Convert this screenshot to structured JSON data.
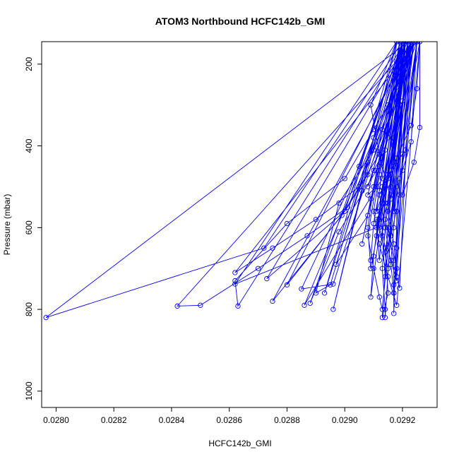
{
  "chart_data": {
    "type": "line",
    "title": "ATOM3 Northbound HCFC142b_GMI",
    "xlabel": "HCFC142b_GMI",
    "ylabel": "Pressure (mbar)",
    "xlim": [
      0.02795,
      0.02932
    ],
    "ylim": [
      1040,
      145
    ],
    "y_reversed": true,
    "x_ticks": [
      0.028,
      0.0282,
      0.0284,
      0.0286,
      0.0288,
      0.029,
      0.0292
    ],
    "x_tick_labels": [
      "0.0280",
      "0.0282",
      "0.0284",
      "0.0286",
      "0.0288",
      "0.0290",
      "0.0292"
    ],
    "y_ticks": [
      200,
      400,
      600,
      800,
      1000
    ],
    "y_tick_labels": [
      "200",
      "400",
      "600",
      "800",
      "1000"
    ],
    "grid": false,
    "series": [
      {
        "color": "#0000ff",
        "marker": "open-circle",
        "points": [
          [
            0.029205,
            145
          ],
          [
            0.02919,
            250
          ],
          [
            0.02915,
            380
          ],
          [
            0.02912,
            470
          ],
          [
            0.0291,
            560
          ],
          [
            0.02912,
            640
          ],
          [
            0.02915,
            720
          ],
          [
            0.02918,
            790
          ],
          [
            0.02926,
            145
          ],
          [
            0.02925,
            260
          ],
          [
            0.02923,
            350
          ],
          [
            0.02918,
            430
          ],
          [
            0.02912,
            520
          ],
          [
            0.02914,
            600
          ],
          [
            0.02916,
            690
          ],
          [
            0.02917,
            760
          ],
          [
            0.02923,
            145
          ],
          [
            0.02915,
            300
          ],
          [
            0.02908,
            440
          ],
          [
            0.02901,
            550
          ],
          [
            0.02887,
            620
          ],
          [
            0.0287,
            700
          ],
          [
            0.0285,
            790
          ],
          [
            0.02842,
            792
          ],
          [
            0.02924,
            145
          ],
          [
            0.0292,
            240
          ],
          [
            0.0291,
            360
          ],
          [
            0.029,
            480
          ],
          [
            0.0288,
            590
          ],
          [
            0.02862,
            730
          ],
          [
            0.02863,
            792
          ],
          [
            0.02921,
            145
          ],
          [
            0.02913,
            360
          ],
          [
            0.02905,
            500
          ],
          [
            0.0289,
            580
          ],
          [
            0.02875,
            650
          ],
          [
            0.02862,
            710
          ],
          [
            0.02925,
            145
          ],
          [
            0.02916,
            320
          ],
          [
            0.02908,
            470
          ],
          [
            0.029,
            560
          ],
          [
            0.02873,
            725
          ],
          [
            0.02922,
            145
          ],
          [
            0.02912,
            420
          ],
          [
            0.02899,
            570
          ],
          [
            0.02875,
            780
          ],
          [
            0.02924,
            145
          ],
          [
            0.0291,
            410
          ],
          [
            0.02898,
            540
          ],
          [
            0.0289,
            760
          ],
          [
            0.02895,
            740
          ],
          [
            0.0292,
            145
          ],
          [
            0.02905,
            450
          ],
          [
            0.02885,
            750
          ],
          [
            0.02896,
            738
          ],
          [
            0.02923,
            145
          ],
          [
            0.02911,
            460
          ],
          [
            0.02898,
            610
          ],
          [
            0.02888,
            785
          ],
          [
            0.0292,
            145
          ],
          [
            0.02906,
            510
          ],
          [
            0.02896,
            800
          ],
          [
            0.02918,
            145
          ],
          [
            0.0291,
            380
          ],
          [
            0.02893,
            760
          ],
          [
            0.02918,
            145
          ],
          [
            0.02909,
            300
          ],
          [
            0.02912,
            420
          ],
          [
            0.02916,
            530
          ],
          [
            0.02926,
            145
          ],
          [
            0.02926,
            355
          ],
          [
            0.02924,
            440
          ],
          [
            0.0292,
            520
          ],
          [
            0.02925,
            145
          ],
          [
            0.02923,
            390
          ],
          [
            0.0292,
            460
          ],
          [
            0.02918,
            560
          ],
          [
            0.02918,
            650
          ],
          [
            0.02921,
            145
          ],
          [
            0.02916,
            500
          ],
          [
            0.02914,
            600
          ],
          [
            0.02913,
            700
          ],
          [
            0.02914,
            800
          ],
          [
            0.02914,
            820
          ],
          [
            0.0292,
            145
          ],
          [
            0.02912,
            560
          ],
          [
            0.02914,
            650
          ],
          [
            0.02915,
            760
          ],
          [
            0.02913,
            820
          ],
          [
            0.02919,
            145
          ],
          [
            0.02908,
            620
          ],
          [
            0.0291,
            700
          ],
          [
            0.02912,
            770
          ],
          [
            0.02913,
            800
          ],
          [
            0.02922,
            145
          ],
          [
            0.02916,
            470
          ],
          [
            0.02914,
            580
          ],
          [
            0.02917,
            680
          ],
          [
            0.02917,
            740
          ],
          [
            0.02917,
            810
          ],
          [
            0.0292,
            145
          ],
          [
            0.02915,
            560
          ],
          [
            0.02917,
            640
          ],
          [
            0.02918,
            720
          ],
          [
            0.02919,
            748
          ],
          [
            0.02923,
            145
          ],
          [
            0.02913,
            500
          ],
          [
            0.0291,
            670
          ],
          [
            0.02909,
            770
          ],
          [
            0.02921,
            145
          ],
          [
            0.0291,
            500
          ],
          [
            0.02908,
            600
          ],
          [
            0.02909,
            700
          ],
          [
            0.02924,
            145
          ],
          [
            0.02916,
            460
          ],
          [
            0.02913,
            540
          ],
          [
            0.02911,
            620
          ],
          [
            0.0292,
            145
          ],
          [
            0.029,
            560
          ],
          [
            0.0288,
            740
          ],
          [
            0.02923,
            145
          ],
          [
            0.02908,
            570
          ],
          [
            0.02897,
            690
          ],
          [
            0.02921,
            145
          ],
          [
            0.02912,
            450
          ],
          [
            0.02909,
            530
          ],
          [
            0.02906,
            640
          ],
          [
            0.0292,
            145
          ],
          [
            0.02914,
            410
          ],
          [
            0.0291,
            460
          ],
          [
            0.02908,
            500
          ],
          [
            0.02924,
            145
          ],
          [
            0.02916,
            520
          ],
          [
            0.02912,
            600
          ],
          [
            0.02915,
            700
          ],
          [
            0.02922,
            145
          ],
          [
            0.02918,
            330
          ],
          [
            0.02917,
            440
          ],
          [
            0.02915,
            540
          ],
          [
            0.02923,
            145
          ],
          [
            0.0292,
            290
          ],
          [
            0.02917,
            390
          ],
          [
            0.02914,
            500
          ],
          [
            0.02912,
            580
          ],
          [
            0.02921,
            145
          ],
          [
            0.02915,
            600
          ],
          [
            0.02918,
            700
          ],
          [
            0.02917,
            760
          ],
          [
            0.02925,
            145
          ],
          [
            0.0292,
            420
          ],
          [
            0.02915,
            480
          ],
          [
            0.02911,
            560
          ],
          [
            0.02919,
            145
          ],
          [
            0.02915,
            370
          ],
          [
            0.02911,
            500
          ],
          [
            0.02908,
            520
          ],
          [
            0.0292,
            145
          ],
          [
            0.02872,
            650
          ],
          [
            0.027965,
            820
          ],
          [
            0.02922,
            145
          ],
          [
            0.02911,
            600
          ],
          [
            0.02862,
            738
          ],
          [
            0.02918,
            145
          ],
          [
            0.02913,
            480
          ],
          [
            0.02886,
            790
          ],
          [
            0.02924,
            145
          ],
          [
            0.02918,
            500
          ],
          [
            0.02917,
            600
          ],
          [
            0.02916,
            680
          ],
          [
            0.02918,
            730
          ],
          [
            0.02922,
            145
          ],
          [
            0.02917,
            400
          ],
          [
            0.02915,
            470
          ],
          [
            0.02913,
            620
          ],
          [
            0.02914,
            720
          ],
          [
            0.02923,
            145
          ],
          [
            0.02919,
            520
          ],
          [
            0.02916,
            620
          ],
          [
            0.02914,
            660
          ],
          [
            0.02925,
            145
          ],
          [
            0.02921,
            410
          ],
          [
            0.02919,
            480
          ],
          [
            0.02917,
            560
          ],
          [
            0.02922,
            145
          ],
          [
            0.02919,
            300
          ],
          [
            0.02917,
            380
          ],
          [
            0.02916,
            460
          ],
          [
            0.02921,
            145
          ],
          [
            0.02914,
            540
          ],
          [
            0.02911,
            580
          ],
          [
            0.02912,
            680
          ],
          [
            0.02919,
            145
          ],
          [
            0.02912,
            510
          ],
          [
            0.0291,
            590
          ],
          [
            0.02909,
            680
          ]
        ]
      }
    ]
  }
}
